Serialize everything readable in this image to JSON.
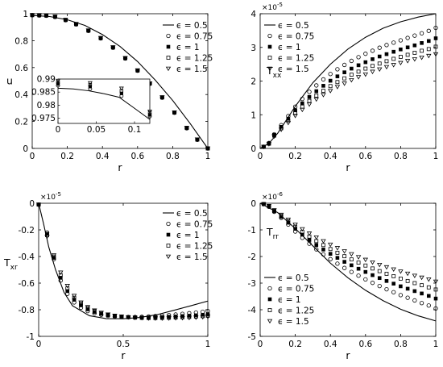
{
  "chart_data": [
    {
      "id": "u",
      "type": "line",
      "ylabel": "u",
      "ylabel_sub": "",
      "xlabel": "r",
      "exponent": "",
      "xlim": [
        0,
        1
      ],
      "ylim": [
        0,
        1
      ],
      "xticks": [
        0,
        0.2,
        0.4,
        0.6,
        0.8,
        1
      ],
      "xtick_labels": [
        "0",
        "0.2",
        "0.4",
        "0.6",
        "0.8",
        "1"
      ],
      "yticks": [
        0,
        0.2,
        0.4,
        0.6,
        0.8,
        1
      ],
      "ytick_labels": [
        "0",
        "0.2",
        "0.4",
        "0.6",
        "0.8",
        "1"
      ],
      "legend_position": "top-right",
      "legend": [
        "ϵ = 0.5",
        "ϵ = 0.75",
        "ϵ = 1",
        "ϵ = 1.25",
        "ϵ = 1.5"
      ],
      "line": {
        "name": "ϵ = 0.5",
        "x": [
          0,
          0.1,
          0.2,
          0.3,
          0.4,
          0.5,
          0.6,
          0.7,
          0.8,
          0.9,
          1
        ],
        "y": [
          0.987,
          0.979,
          0.955,
          0.913,
          0.845,
          0.757,
          0.645,
          0.508,
          0.356,
          0.184,
          0
        ]
      },
      "marker_x": [
        0,
        0.04,
        0.08,
        0.13,
        0.19,
        0.25,
        0.32,
        0.39,
        0.46,
        0.53,
        0.6,
        0.67,
        0.74,
        0.81,
        0.88,
        0.94,
        1
      ],
      "series": [
        {
          "name": "ϵ = 0.75",
          "marker": "circle",
          "y": [
            0.989,
            0.987,
            0.985,
            0.976,
            0.952,
            0.921,
            0.873,
            0.817,
            0.748,
            0.668,
            0.577,
            0.48,
            0.377,
            0.265,
            0.15,
            0.064,
            0
          ]
        },
        {
          "name": "ϵ = 1",
          "marker": "filled-square",
          "y": [
            0.989,
            0.988,
            0.986,
            0.977,
            0.953,
            0.922,
            0.874,
            0.818,
            0.749,
            0.669,
            0.578,
            0.481,
            0.378,
            0.266,
            0.151,
            0.065,
            0
          ]
        },
        {
          "name": "ϵ = 1.25",
          "marker": "square",
          "y": [
            0.99,
            0.989,
            0.987,
            0.978,
            0.954,
            0.923,
            0.875,
            0.819,
            0.75,
            0.67,
            0.579,
            0.482,
            0.379,
            0.267,
            0.152,
            0.066,
            0
          ]
        },
        {
          "name": "ϵ = 1.5",
          "marker": "triangle-down",
          "y": [
            0.99,
            0.99,
            0.988,
            0.979,
            0.955,
            0.924,
            0.876,
            0.82,
            0.751,
            0.671,
            0.58,
            0.483,
            0.38,
            0.268,
            0.153,
            0.067,
            0
          ]
        }
      ],
      "inset": {
        "xlim": [
          0,
          0.12
        ],
        "ylim": [
          0.973,
          0.99
        ],
        "xticks": [
          0,
          0.05,
          0.1
        ],
        "xtick_labels": [
          "0",
          "0.05",
          "0.1"
        ],
        "yticks": [
          0.975,
          0.98,
          0.985,
          0.99
        ],
        "ytick_labels": [
          "0.975",
          "0.98",
          "0.985",
          "0.99"
        ],
        "line": {
          "x": [
            0,
            0.02,
            0.04,
            0.06,
            0.08,
            0.1,
            0.12
          ],
          "y": [
            0.9865,
            0.9862,
            0.9855,
            0.9844,
            0.983,
            0.9788,
            0.9745
          ]
        },
        "marker_x": [
          0,
          0.042,
          0.083,
          0.12
        ],
        "series": [
          {
            "name": "ϵ = 0.75",
            "y": [
              0.9875,
              0.9862,
              0.9835,
              0.9757
            ]
          },
          {
            "name": "ϵ = 1",
            "y": [
              0.9882,
              0.9871,
              0.9845,
              0.9763
            ]
          },
          {
            "name": "ϵ = 1.25",
            "y": [
              0.9888,
              0.9878,
              0.9855,
              0.977
            ]
          },
          {
            "name": "ϵ = 1.5",
            "y": [
              0.9894,
              0.9885,
              0.9864,
              0.9776
            ]
          }
        ]
      }
    },
    {
      "id": "txx",
      "type": "line",
      "ylabel": "T",
      "ylabel_sub": "xx",
      "xlabel": "r",
      "exponent": "×10",
      "exponent_power": "-5",
      "xlim": [
        0,
        1
      ],
      "ylim": [
        0,
        4
      ],
      "xticks": [
        0,
        0.2,
        0.4,
        0.6,
        0.8,
        1
      ],
      "xtick_labels": [
        "0",
        "0.2",
        "0.4",
        "0.6",
        "0.8",
        "1"
      ],
      "yticks": [
        0,
        1,
        2,
        3,
        4
      ],
      "ytick_labels": [
        "0",
        "1",
        "2",
        "3",
        "4"
      ],
      "legend_position": "top-left",
      "legend": [
        "ϵ = 0.5",
        "ϵ = 0.75",
        "ϵ = 1",
        "ϵ = 1.25",
        "ϵ = 1.5"
      ],
      "line": {
        "name": "ϵ = 0.5",
        "x": [
          0,
          0.05,
          0.1,
          0.15,
          0.2,
          0.3,
          0.4,
          0.5,
          0.6,
          0.7,
          0.8,
          0.9,
          1
        ],
        "y": [
          0,
          0.15,
          0.45,
          0.85,
          1.25,
          1.95,
          2.5,
          2.95,
          3.3,
          3.57,
          3.76,
          3.9,
          4.0
        ]
      },
      "marker_x": [
        0.02,
        0.05,
        0.08,
        0.12,
        0.16,
        0.2,
        0.24,
        0.28,
        0.32,
        0.36,
        0.4,
        0.44,
        0.48,
        0.52,
        0.56,
        0.6,
        0.64,
        0.68,
        0.72,
        0.76,
        0.8,
        0.84,
        0.88,
        0.92,
        0.96,
        1
      ],
      "series": [
        {
          "name": "ϵ = 0.75",
          "marker": "circle",
          "y": [
            0.05,
            0.16,
            0.42,
            0.69,
            0.96,
            1.24,
            1.47,
            1.68,
            1.87,
            2.05,
            2.21,
            2.35,
            2.48,
            2.6,
            2.71,
            2.81,
            2.9,
            2.99,
            3.07,
            3.14,
            3.21,
            3.28,
            3.35,
            3.42,
            3.49,
            3.58
          ]
        },
        {
          "name": "ϵ = 1",
          "marker": "filled-square",
          "y": [
            0.05,
            0.15,
            0.4,
            0.64,
            0.88,
            1.13,
            1.34,
            1.53,
            1.7,
            1.86,
            2.01,
            2.14,
            2.26,
            2.37,
            2.47,
            2.56,
            2.65,
            2.73,
            2.8,
            2.87,
            2.94,
            3.0,
            3.06,
            3.13,
            3.19,
            3.27
          ]
        },
        {
          "name": "ϵ = 1.25",
          "marker": "square",
          "y": [
            0.05,
            0.14,
            0.38,
            0.6,
            0.82,
            1.05,
            1.24,
            1.41,
            1.57,
            1.71,
            1.85,
            1.97,
            2.08,
            2.19,
            2.28,
            2.37,
            2.45,
            2.52,
            2.59,
            2.66,
            2.72,
            2.78,
            2.84,
            2.9,
            2.95,
            3.02
          ]
        },
        {
          "name": "ϵ = 1.5",
          "marker": "triangle-down",
          "y": [
            0.05,
            0.13,
            0.36,
            0.56,
            0.76,
            0.97,
            1.15,
            1.31,
            1.46,
            1.59,
            1.71,
            1.83,
            1.93,
            2.03,
            2.12,
            2.2,
            2.28,
            2.35,
            2.42,
            2.48,
            2.54,
            2.6,
            2.65,
            2.7,
            2.75,
            2.8
          ]
        }
      ]
    },
    {
      "id": "txr",
      "type": "line",
      "ylabel": "T",
      "ylabel_sub": "xr",
      "xlabel": "r",
      "exponent": "×10",
      "exponent_power": "-5",
      "xlim": [
        0,
        1
      ],
      "ylim": [
        -1,
        0
      ],
      "xticks": [
        0,
        0.5,
        1
      ],
      "xtick_labels": [
        "0",
        "0.5",
        "1"
      ],
      "yticks": [
        -1,
        -0.8,
        -0.6,
        -0.4,
        -0.2,
        0
      ],
      "ytick_labels": [
        "-1",
        "-0.8",
        "-0.6",
        "-0.4",
        "-0.2",
        "0"
      ],
      "legend_position": "top-right",
      "legend": [
        "ϵ = 0.5",
        "ϵ = 0.75",
        "ϵ = 1",
        "ϵ = 1.25",
        "ϵ = 1.5"
      ],
      "line": {
        "name": "ϵ = 0.5",
        "x": [
          0,
          0.03,
          0.06,
          0.1,
          0.15,
          0.2,
          0.3,
          0.4,
          0.5,
          0.6,
          0.7,
          0.8,
          0.9,
          1
        ],
        "y": [
          0,
          -0.16,
          -0.33,
          -0.5,
          -0.67,
          -0.77,
          -0.845,
          -0.867,
          -0.868,
          -0.858,
          -0.837,
          -0.804,
          -0.77,
          -0.735
        ]
      },
      "marker_x": [
        0,
        0.05,
        0.09,
        0.13,
        0.17,
        0.21,
        0.25,
        0.29,
        0.33,
        0.37,
        0.41,
        0.45,
        0.49,
        0.53,
        0.57,
        0.61,
        0.65,
        0.69,
        0.73,
        0.77,
        0.81,
        0.85,
        0.89,
        0.93,
        0.97,
        1
      ],
      "series": [
        {
          "name": "ϵ = 0.75",
          "marker": "circle",
          "y": [
            -0.01,
            -0.22,
            -0.42,
            -0.58,
            -0.68,
            -0.745,
            -0.785,
            -0.81,
            -0.827,
            -0.838,
            -0.846,
            -0.851,
            -0.854,
            -0.855,
            -0.855,
            -0.853,
            -0.851,
            -0.848,
            -0.844,
            -0.84,
            -0.836,
            -0.831,
            -0.826,
            -0.821,
            -0.815,
            -0.81
          ]
        },
        {
          "name": "ϵ = 1",
          "marker": "filled-square",
          "y": [
            -0.01,
            -0.23,
            -0.41,
            -0.56,
            -0.66,
            -0.725,
            -0.767,
            -0.797,
            -0.817,
            -0.831,
            -0.841,
            -0.848,
            -0.853,
            -0.856,
            -0.857,
            -0.858,
            -0.858,
            -0.857,
            -0.855,
            -0.853,
            -0.851,
            -0.848,
            -0.845,
            -0.842,
            -0.838,
            -0.834
          ]
        },
        {
          "name": "ϵ = 1.25",
          "marker": "square",
          "y": [
            -0.01,
            -0.24,
            -0.4,
            -0.54,
            -0.64,
            -0.71,
            -0.755,
            -0.787,
            -0.81,
            -0.826,
            -0.838,
            -0.846,
            -0.852,
            -0.856,
            -0.859,
            -0.861,
            -0.862,
            -0.862,
            -0.861,
            -0.86,
            -0.858,
            -0.856,
            -0.854,
            -0.851,
            -0.848,
            -0.845
          ]
        },
        {
          "name": "ϵ = 1.5",
          "marker": "triangle-down",
          "y": [
            -0.01,
            -0.25,
            -0.39,
            -0.52,
            -0.62,
            -0.695,
            -0.745,
            -0.78,
            -0.805,
            -0.822,
            -0.835,
            -0.844,
            -0.851,
            -0.856,
            -0.86,
            -0.862,
            -0.864,
            -0.865,
            -0.865,
            -0.864,
            -0.863,
            -0.862,
            -0.86,
            -0.858,
            -0.855,
            -0.852
          ]
        }
      ]
    },
    {
      "id": "trr",
      "type": "line",
      "ylabel": "T",
      "ylabel_sub": "rr",
      "xlabel": "r",
      "exponent": "×10",
      "exponent_power": "-6",
      "xlim": [
        0,
        1
      ],
      "ylim": [
        -5,
        0
      ],
      "xticks": [
        0,
        0.2,
        0.4,
        0.6,
        0.8,
        1
      ],
      "xtick_labels": [
        "0",
        "0.2",
        "0.4",
        "0.6",
        "0.8",
        "1"
      ],
      "yticks": [
        -5,
        -4,
        -3,
        -2,
        -1,
        0
      ],
      "ytick_labels": [
        "-5",
        "-4",
        "-3",
        "-2",
        "-1",
        "0"
      ],
      "legend_position": "bottom-left",
      "legend": [
        "ϵ = 0.5",
        "ϵ = 0.75",
        "ϵ = 1",
        "ϵ = 1.25",
        "ϵ = 1.5"
      ],
      "line": {
        "name": "ϵ = 0.5",
        "x": [
          0,
          0.1,
          0.2,
          0.3,
          0.4,
          0.5,
          0.6,
          0.7,
          0.8,
          0.9,
          1
        ],
        "y": [
          0,
          -0.35,
          -0.95,
          -1.6,
          -2.25,
          -2.8,
          -3.27,
          -3.66,
          -3.98,
          -4.23,
          -4.42
        ]
      },
      "marker_x": [
        0.02,
        0.05,
        0.08,
        0.12,
        0.16,
        0.2,
        0.24,
        0.28,
        0.32,
        0.36,
        0.4,
        0.44,
        0.48,
        0.52,
        0.56,
        0.6,
        0.64,
        0.68,
        0.72,
        0.76,
        0.8,
        0.84,
        0.88,
        0.92,
        0.96,
        1
      ],
      "series": [
        {
          "name": "ϵ = 0.75",
          "marker": "circle",
          "y": [
            -0.03,
            -0.13,
            -0.32,
            -0.55,
            -0.8,
            -1.06,
            -1.3,
            -1.52,
            -1.73,
            -1.92,
            -2.1,
            -2.27,
            -2.43,
            -2.58,
            -2.72,
            -2.86,
            -2.99,
            -3.11,
            -3.23,
            -3.34,
            -3.45,
            -3.55,
            -3.65,
            -3.75,
            -3.84,
            -3.95
          ]
        },
        {
          "name": "ϵ = 1",
          "marker": "filled-square",
          "y": [
            -0.03,
            -0.12,
            -0.3,
            -0.51,
            -0.73,
            -0.96,
            -1.18,
            -1.38,
            -1.57,
            -1.74,
            -1.9,
            -2.05,
            -2.2,
            -2.33,
            -2.46,
            -2.58,
            -2.7,
            -2.81,
            -2.92,
            -3.02,
            -3.12,
            -3.21,
            -3.3,
            -3.39,
            -3.48,
            -3.58
          ]
        },
        {
          "name": "ϵ = 1.25",
          "marker": "square",
          "y": [
            -0.03,
            -0.11,
            -0.28,
            -0.47,
            -0.67,
            -0.88,
            -1.07,
            -1.25,
            -1.42,
            -1.57,
            -1.72,
            -1.86,
            -1.99,
            -2.11,
            -2.23,
            -2.34,
            -2.45,
            -2.55,
            -2.65,
            -2.74,
            -2.83,
            -2.92,
            -3.0,
            -3.08,
            -3.16,
            -3.24
          ]
        },
        {
          "name": "ϵ = 1.5",
          "marker": "triangle-down",
          "y": [
            -0.03,
            -0.1,
            -0.26,
            -0.43,
            -0.61,
            -0.8,
            -0.97,
            -1.13,
            -1.28,
            -1.42,
            -1.55,
            -1.68,
            -1.8,
            -1.91,
            -2.02,
            -2.12,
            -2.22,
            -2.31,
            -2.4,
            -2.48,
            -2.56,
            -2.64,
            -2.72,
            -2.79,
            -2.86,
            -2.94
          ]
        }
      ]
    }
  ]
}
